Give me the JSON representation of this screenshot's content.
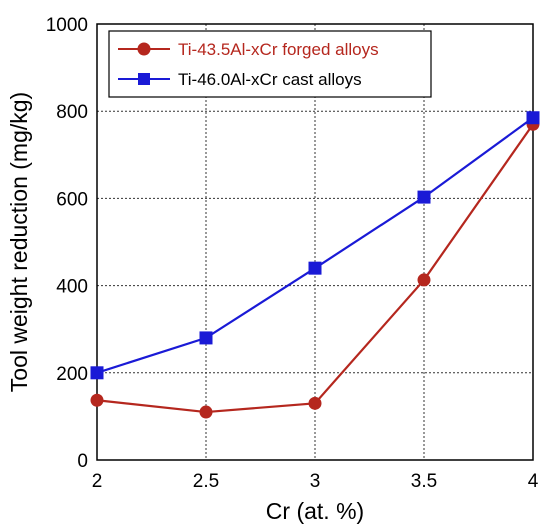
{
  "chart_data": {
    "type": "line",
    "xlabel": "Cr (at. %)",
    "ylabel": "Tool weight reduction (mg/kg)",
    "xlim": [
      2,
      4
    ],
    "ylim": [
      0,
      1000
    ],
    "x_ticks": [
      "2",
      "2.5",
      "3",
      "3.5",
      "4"
    ],
    "y_ticks": [
      "0",
      "200",
      "400",
      "600",
      "800",
      "1000"
    ],
    "grid": true,
    "legend_position": "top-left",
    "series": [
      {
        "name": "Ti-43.5Al-xCr forged alloys",
        "color": "#b5271e",
        "marker": "circle",
        "x": [
          2,
          2.5,
          3,
          3.5,
          4
        ],
        "y": [
          137,
          110,
          130,
          413,
          770
        ]
      },
      {
        "name": "Ti-46.0Al-xCr cast alloys",
        "color": "#1a1ad6",
        "marker": "square",
        "x": [
          2,
          2.5,
          3,
          3.5,
          4
        ],
        "y": [
          200,
          280,
          440,
          603,
          785
        ]
      }
    ]
  }
}
